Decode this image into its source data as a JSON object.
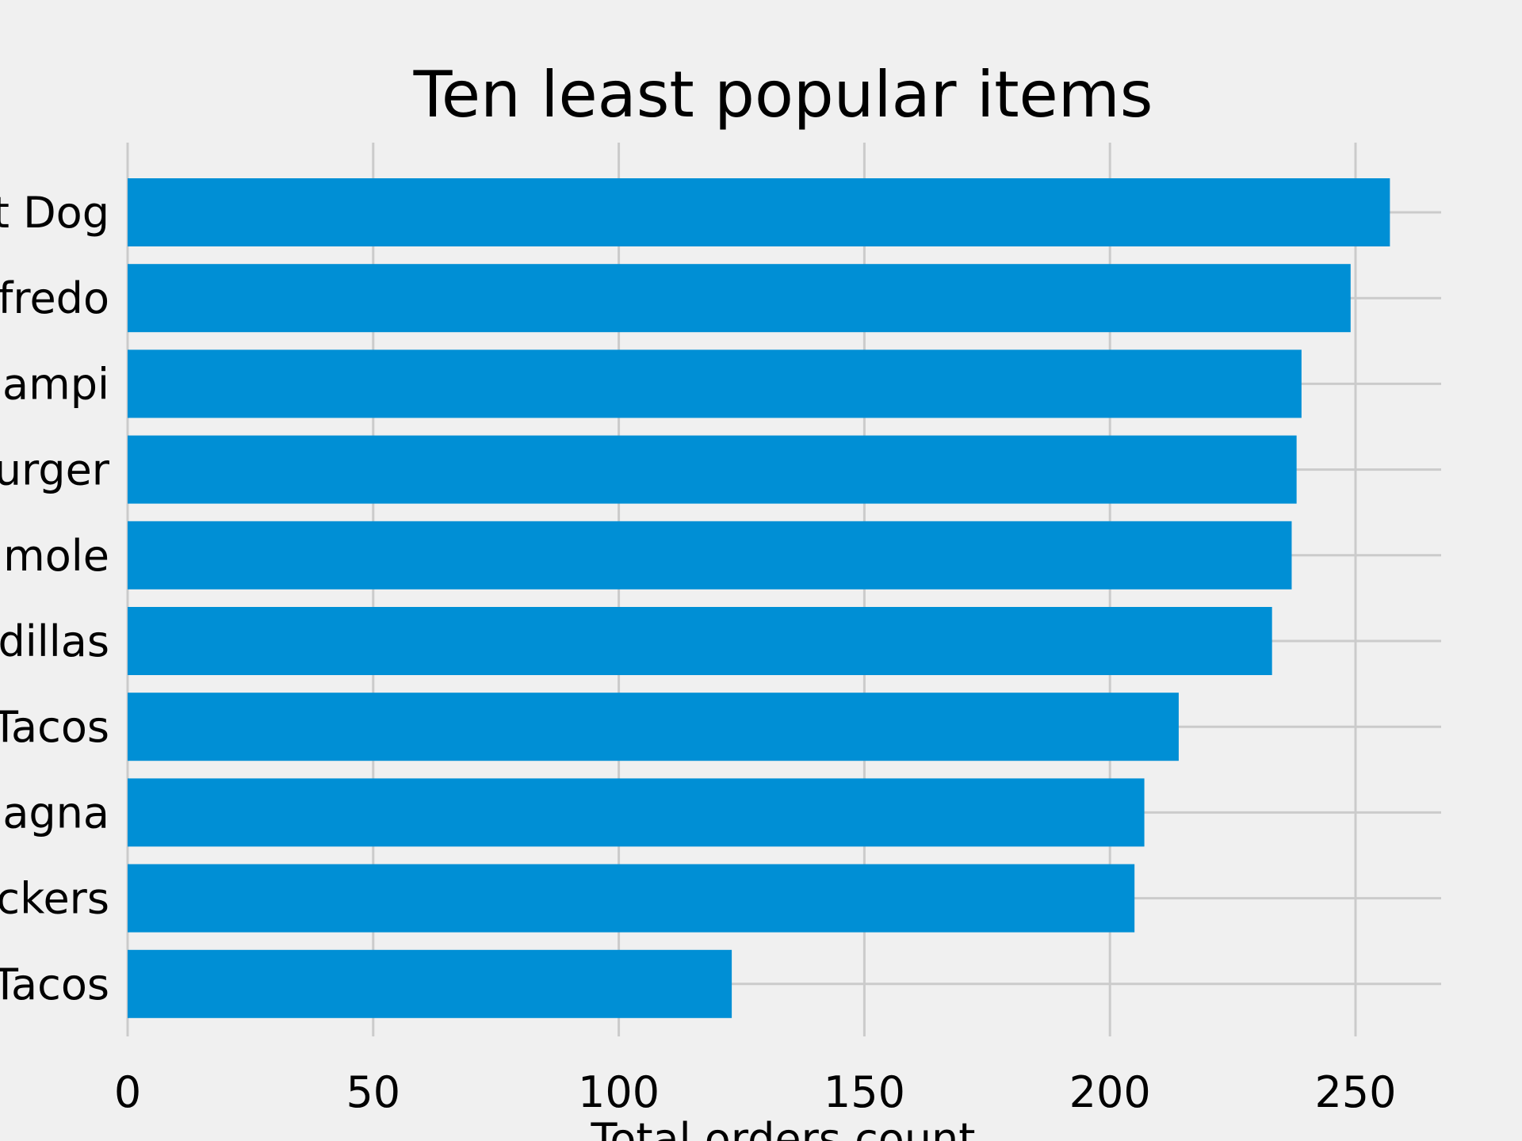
{
  "chart_data": {
    "type": "bar",
    "orientation": "horizontal",
    "title": "Ten least popular items",
    "xlabel": "Total orders count",
    "ylabel": "",
    "xlim": [
      0,
      270
    ],
    "x_ticks": [
      0,
      50,
      100,
      150,
      200,
      250
    ],
    "grid": true,
    "categories": [
      "Hot Dog",
      "Alfredo",
      "Scampi",
      "Burger",
      "Guacamole",
      "Quesadillas",
      "Fish Tacos",
      "Lasagna",
      "Crackers",
      "Tacos"
    ],
    "category_labels_visible": [
      "t Dog",
      "fredo",
      "ampi",
      "urger",
      "mole",
      "dillas",
      "Tacos",
      "agna",
      "ckers",
      "Tacos"
    ],
    "values": [
      257,
      249,
      239,
      238,
      237,
      233,
      214,
      207,
      205,
      123
    ],
    "colors": {
      "bar": "#008fd5",
      "background": "#f0f0f0",
      "grid": "#cbcbcb",
      "text": "#000000"
    }
  }
}
